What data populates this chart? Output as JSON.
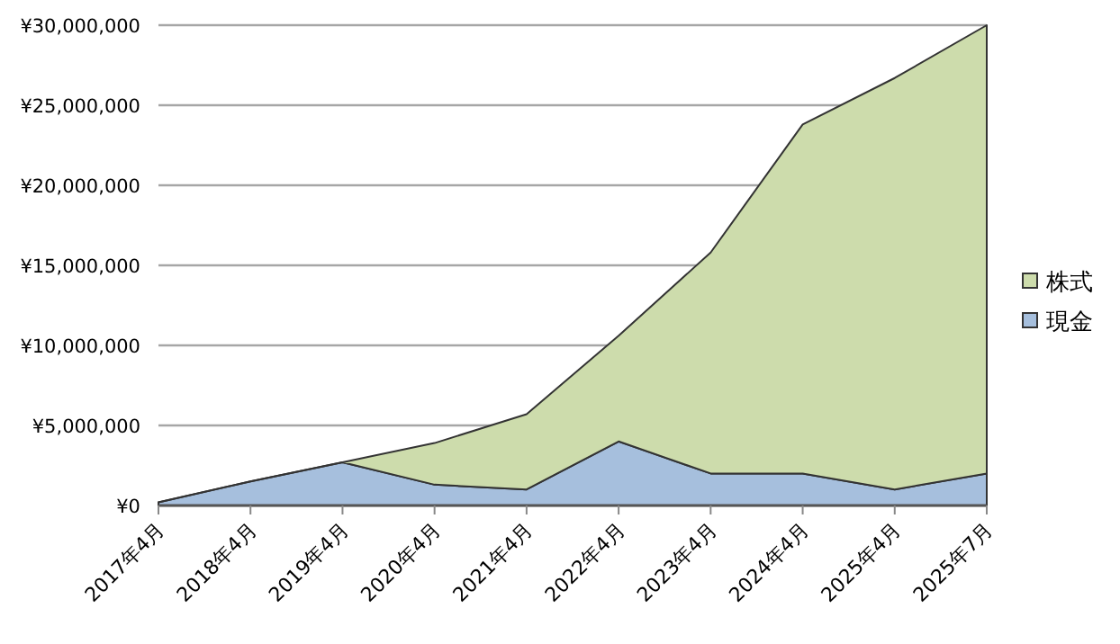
{
  "chart_data": {
    "type": "area",
    "stacked": true,
    "grid": "y",
    "legend": "right",
    "categories": [
      "2017年4月",
      "2018年4月",
      "2019年4月",
      "2020年4月",
      "2021年4月",
      "2022年4月",
      "2023年4月",
      "2024年4月",
      "2025年4月",
      "2025年7月"
    ],
    "series": [
      {
        "name": "現金",
        "color": "#a6bfdd",
        "values": [
          200000,
          1500000,
          2700000,
          1300000,
          1000000,
          4000000,
          2000000,
          2000000,
          1000000,
          2000000
        ]
      },
      {
        "name": "株式",
        "color": "#cddcac",
        "values": [
          0,
          0,
          0,
          2600000,
          4700000,
          6600000,
          13800000,
          21800000,
          25700000,
          28000000
        ]
      }
    ],
    "ylim": [
      0,
      30000000
    ],
    "yticks": [
      {
        "value": 0,
        "label": "¥0"
      },
      {
        "value": 5000000,
        "label": "¥5,000,000"
      },
      {
        "value": 10000000,
        "label": "¥10,000,000"
      },
      {
        "value": 15000000,
        "label": "¥15,000,000"
      },
      {
        "value": 20000000,
        "label": "¥20,000,000"
      },
      {
        "value": 25000000,
        "label": "¥25,000,000"
      },
      {
        "value": 30000000,
        "label": "¥30,000,000"
      }
    ]
  }
}
